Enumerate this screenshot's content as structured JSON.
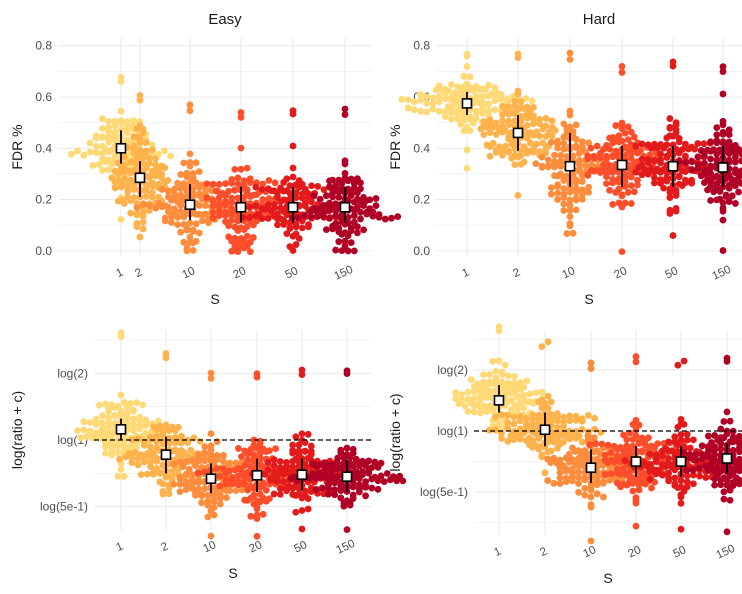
{
  "colors": {
    "categories": [
      "#fed976",
      "#feb24c",
      "#fd8d3c",
      "#fc4e2a",
      "#e31a1c",
      "#b10026"
    ],
    "grid": "#ebebeb",
    "text": "#4d4d4d",
    "title": "#1a1a1a",
    "refline": "#000000"
  },
  "chart_data": [
    {
      "type": "scatter",
      "subtype": "beeswarm-with-median-and-interval",
      "title": "Easy",
      "xlabel": "S",
      "ylabel": "FDR %",
      "categories": [
        "1",
        "2",
        "10",
        "20",
        "50",
        "150"
      ],
      "ylim": [
        -0.02,
        0.83
      ],
      "yticks": [
        0.0,
        0.2,
        0.4,
        0.6,
        0.8
      ],
      "ytick_labels": [
        "0.0",
        "0.2",
        "0.4",
        "0.6",
        "0.8"
      ],
      "grid": true,
      "refline": null,
      "summary": [
        {
          "category": "1",
          "median": 0.4,
          "low": 0.34,
          "high": 0.47,
          "min": 0.12,
          "max": 0.68,
          "spread": 0.08
        },
        {
          "category": "2",
          "median": 0.285,
          "low": 0.21,
          "high": 0.35,
          "min": 0.05,
          "max": 0.61,
          "spread": 0.09
        },
        {
          "category": "10",
          "median": 0.18,
          "low": 0.12,
          "high": 0.26,
          "min": 0.0,
          "max": 0.57,
          "spread": 0.08
        },
        {
          "category": "20",
          "median": 0.17,
          "low": 0.11,
          "high": 0.25,
          "min": 0.0,
          "max": 0.54,
          "spread": 0.08
        },
        {
          "category": "50",
          "median": 0.17,
          "low": 0.11,
          "high": 0.25,
          "min": 0.0,
          "max": 0.55,
          "spread": 0.08
        },
        {
          "category": "150",
          "median": 0.17,
          "low": 0.11,
          "high": 0.25,
          "min": 0.0,
          "max": 0.55,
          "spread": 0.08
        }
      ]
    },
    {
      "type": "scatter",
      "subtype": "beeswarm-with-median-and-interval",
      "title": "Hard",
      "xlabel": "S",
      "ylabel": "FDR %",
      "categories": [
        "1",
        "2",
        "10",
        "20",
        "50",
        "150"
      ],
      "ylim": [
        -0.02,
        0.83
      ],
      "yticks": [
        0.0,
        0.2,
        0.4,
        0.6,
        0.8
      ],
      "ytick_labels": [
        "0.0",
        "0.2",
        "0.4",
        "0.6",
        "0.8"
      ],
      "grid": true,
      "refline": null,
      "summary": [
        {
          "category": "1",
          "median": 0.575,
          "low": 0.53,
          "high": 0.62,
          "min": 0.32,
          "max": 0.77,
          "spread": 0.05
        },
        {
          "category": "2",
          "median": 0.46,
          "low": 0.39,
          "high": 0.53,
          "min": 0.22,
          "max": 0.77,
          "spread": 0.07
        },
        {
          "category": "10",
          "median": 0.33,
          "low": 0.25,
          "high": 0.46,
          "min": 0.07,
          "max": 0.77,
          "spread": 0.1
        },
        {
          "category": "20",
          "median": 0.335,
          "low": 0.25,
          "high": 0.41,
          "min": 0.0,
          "max": 0.72,
          "spread": 0.09
        },
        {
          "category": "50",
          "median": 0.33,
          "low": 0.25,
          "high": 0.41,
          "min": 0.06,
          "max": 0.74,
          "spread": 0.09
        },
        {
          "category": "150",
          "median": 0.325,
          "low": 0.25,
          "high": 0.41,
          "min": 0.0,
          "max": 0.72,
          "spread": 0.09
        }
      ]
    },
    {
      "type": "scatter",
      "subtype": "beeswarm-with-median-and-interval",
      "title": "",
      "xlabel": "S",
      "ylabel": "log(ratio + c)",
      "y_scale": "log",
      "categories": [
        "1",
        "2",
        "10",
        "20",
        "50",
        "150"
      ],
      "ylim": [
        -1.35,
        1.65
      ],
      "yticks": [
        -1.0,
        0.0,
        1.0
      ],
      "ytick_labels": [
        "log(5e-1)",
        "log(1)",
        "log(2)"
      ],
      "minor_gridlines": [
        -1.5,
        -0.5,
        0.5,
        1.5
      ],
      "grid": true,
      "refline": 0.0,
      "summary": [
        {
          "category": "1",
          "median": 0.16,
          "low": 0.0,
          "high": 0.32,
          "min": -0.55,
          "max": 1.6,
          "spread": 0.25
        },
        {
          "category": "2",
          "median": -0.22,
          "low": -0.5,
          "high": 0.05,
          "min": -0.8,
          "max": 1.3,
          "spread": 0.28
        },
        {
          "category": "10",
          "median": -0.58,
          "low": -0.8,
          "high": -0.35,
          "min": -1.45,
          "max": 1.0,
          "spread": 0.27
        },
        {
          "category": "20",
          "median": -0.53,
          "low": -0.78,
          "high": -0.28,
          "min": -1.45,
          "max": 1.0,
          "spread": 0.27
        },
        {
          "category": "50",
          "median": -0.52,
          "low": -0.76,
          "high": -0.28,
          "min": -1.35,
          "max": 1.05,
          "spread": 0.26
        },
        {
          "category": "150",
          "median": -0.55,
          "low": -0.78,
          "high": -0.3,
          "min": -1.35,
          "max": 1.05,
          "spread": 0.26
        }
      ]
    },
    {
      "type": "scatter",
      "subtype": "beeswarm-with-median-and-interval",
      "title": "",
      "xlabel": "S",
      "ylabel": "log(ratio + c)",
      "y_scale": "log",
      "categories": [
        "1",
        "2",
        "10",
        "20",
        "50",
        "150"
      ],
      "ylim": [
        -1.7,
        1.65
      ],
      "yticks": [
        -1.0,
        0.0,
        1.0
      ],
      "ytick_labels": [
        "log(5e-1)",
        "log(1)",
        "log(2)"
      ],
      "minor_gridlines": [
        -1.5,
        -0.5,
        0.5,
        1.5
      ],
      "grid": true,
      "refline": 0.0,
      "summary": [
        {
          "category": "1",
          "median": 0.5,
          "low": 0.3,
          "high": 0.75,
          "min": 0.0,
          "max": 1.7,
          "spread": 0.25
        },
        {
          "category": "2",
          "median": 0.02,
          "low": -0.25,
          "high": 0.3,
          "min": -0.7,
          "max": 1.45,
          "spread": 0.27
        },
        {
          "category": "10",
          "median": -0.6,
          "low": -0.85,
          "high": -0.3,
          "min": -1.8,
          "max": 1.1,
          "spread": 0.28
        },
        {
          "category": "20",
          "median": -0.5,
          "low": -0.75,
          "high": -0.25,
          "min": -1.55,
          "max": 1.2,
          "spread": 0.28
        },
        {
          "category": "50",
          "median": -0.5,
          "low": -0.75,
          "high": -0.25,
          "min": -1.6,
          "max": 1.15,
          "spread": 0.28
        },
        {
          "category": "150",
          "median": -0.45,
          "low": -0.7,
          "high": -0.2,
          "min": -1.65,
          "max": 1.2,
          "spread": 0.28
        }
      ]
    }
  ]
}
